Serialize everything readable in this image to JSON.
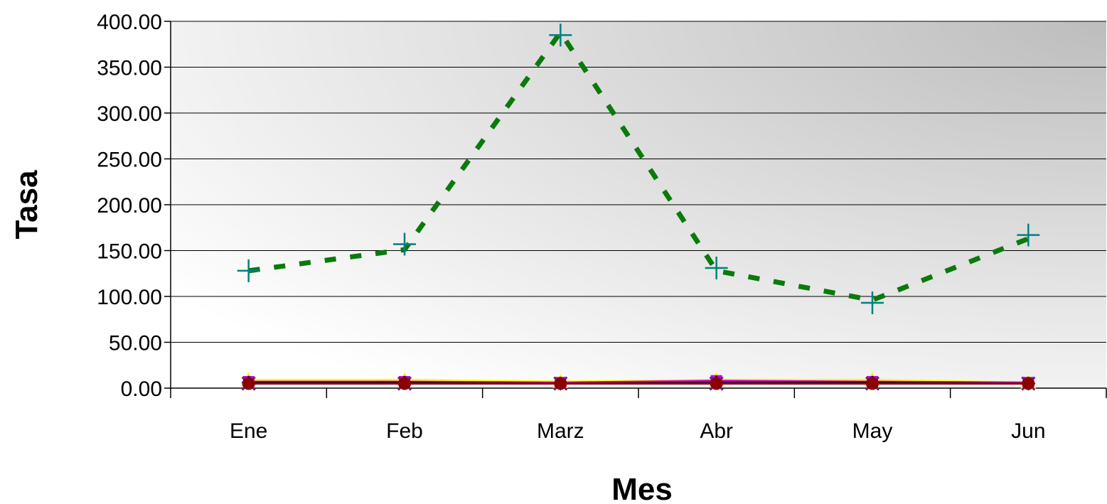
{
  "chart_data": {
    "type": "line",
    "title": "",
    "xlabel": "Mes",
    "ylabel": "Tasa",
    "categories": [
      "Ene",
      "Feb",
      "Marz",
      "Abr",
      "May",
      "Jun"
    ],
    "ylim": [
      0,
      400
    ],
    "yticks": [
      0,
      50,
      100,
      150,
      200,
      250,
      300,
      350,
      400
    ],
    "ytick_labels": [
      "0.00",
      "50.00",
      "100.00",
      "150.00",
      "200.00",
      "250.00",
      "300.00",
      "350.00",
      "400.00"
    ],
    "grid": true,
    "legend": "none",
    "background": "gradient",
    "series": [
      {
        "values": [
          128,
          157,
          385,
          131,
          93,
          167
        ],
        "color": "#008080",
        "line": "none",
        "line_color": "#0a7a0a",
        "trend_values": [
          128,
          151,
          388,
          128,
          96,
          163
        ],
        "trend_style": "dotted",
        "marker": "plus"
      },
      {
        "values": [
          9,
          9,
          7,
          9,
          9,
          6
        ],
        "color": "#ffff00",
        "line": "solid",
        "marker": "triangle"
      },
      {
        "values": [
          7,
          7,
          6,
          8,
          7,
          6
        ],
        "color": "#cc00cc",
        "line": "solid",
        "marker": "square"
      },
      {
        "values": [
          6,
          6,
          5,
          6,
          6,
          5
        ],
        "color": "#000080",
        "line": "solid",
        "marker": "diamond"
      },
      {
        "values": [
          5,
          5,
          5,
          5,
          5,
          5
        ],
        "color": "#6a1b9a",
        "line": "solid",
        "marker": "x"
      },
      {
        "values": [
          5,
          5,
          5,
          5,
          5,
          5
        ],
        "color": "#8b0000",
        "line": "solid",
        "marker": "circle"
      }
    ]
  }
}
